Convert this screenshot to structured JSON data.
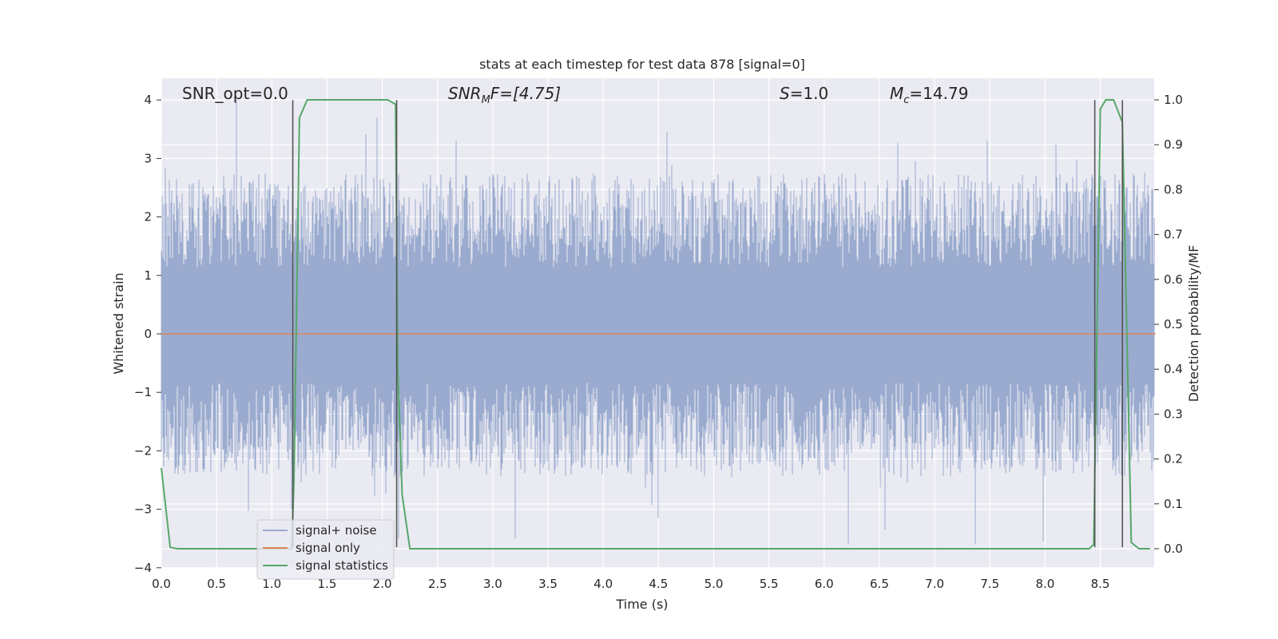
{
  "chart_data": {
    "type": "line",
    "title": "stats at each timestep for test data 878 [signal=0]",
    "xlabel": "Time (s)",
    "ylabel": "Whitened strain",
    "ylabel_right": "Detection probability/MF",
    "xlim": [
      0.0,
      9.0
    ],
    "ylim": [
      -4.2,
      4.4
    ],
    "ylim_right": [
      -0.05,
      1.03
    ],
    "grid": true,
    "legend_position": "lower-left",
    "x_ticks": [
      "0.0",
      "0.5",
      "1.0",
      "1.5",
      "2.0",
      "2.5",
      "3.0",
      "3.5",
      "4.0",
      "4.5",
      "5.0",
      "5.5",
      "6.0",
      "6.5",
      "7.0",
      "7.5",
      "8.0",
      "8.5"
    ],
    "y_ticks": [
      "−4",
      "−3",
      "−2",
      "−1",
      "0",
      "1",
      "2",
      "3",
      "4"
    ],
    "y_right_ticks": [
      "0.0",
      "0.1",
      "0.2",
      "0.3",
      "0.4",
      "0.5",
      "0.6",
      "0.7",
      "0.8",
      "0.9",
      "1.0"
    ],
    "annotations": {
      "snr_opt": "SNR_opt=0.0",
      "snr_mf_base": "SNR",
      "snr_mf_sub": "M",
      "snr_mf_rest": "F=[4.75]",
      "s_var": "S",
      "s_rest": "=1.0",
      "mc_var": "M",
      "mc_sub": "c",
      "mc_rest": "=14.79"
    },
    "series": [
      {
        "name": "signal+ noise",
        "color": "#9aabcf",
        "axis": "left",
        "style": "noise band",
        "typical_range": [
          -1.4,
          1.7
        ],
        "peak_range": [
          -3.6,
          4.0
        ]
      },
      {
        "name": "signal only",
        "color": "#dd8452",
        "axis": "left",
        "x": [
          0.0,
          9.0
        ],
        "y": [
          0.0,
          0.0
        ]
      },
      {
        "name": "signal statistics",
        "color": "#55a868",
        "axis": "right",
        "x": [
          0.0,
          0.08,
          0.15,
          1.18,
          1.2,
          1.25,
          1.32,
          2.05,
          2.12,
          2.14,
          2.18,
          2.25,
          8.4,
          8.44,
          8.5,
          8.55,
          8.62,
          8.7,
          8.78,
          8.85,
          8.95
        ],
        "y": [
          0.18,
          0.003,
          0.0,
          0.0,
          0.15,
          0.96,
          1.0,
          1.0,
          0.99,
          0.4,
          0.12,
          0.0,
          0.0,
          0.01,
          0.98,
          1.0,
          1.0,
          0.95,
          0.014,
          0.0,
          0.0
        ]
      }
    ],
    "vertical_markers": {
      "color": "#555555",
      "x": [
        1.19,
        2.13,
        8.45,
        8.7
      ],
      "y_top": 4.0,
      "y_bottom": -3.65
    },
    "noise_peaks": [
      {
        "x": 0.68,
        "y": 4.0
      },
      {
        "x": 1.95,
        "y": 3.7
      },
      {
        "x": 4.58,
        "y": 3.45
      },
      {
        "x": 7.48,
        "y": 3.3
      },
      {
        "x": 0.15,
        "y": -2.4
      },
      {
        "x": 1.18,
        "y": -3.0
      },
      {
        "x": 2.15,
        "y": -3.5
      },
      {
        "x": 3.2,
        "y": -3.5
      },
      {
        "x": 4.5,
        "y": -3.15
      },
      {
        "x": 6.22,
        "y": -3.65
      },
      {
        "x": 6.55,
        "y": -3.35
      },
      {
        "x": 7.37,
        "y": -3.65
      },
      {
        "x": 7.98,
        "y": -3.55
      }
    ]
  }
}
